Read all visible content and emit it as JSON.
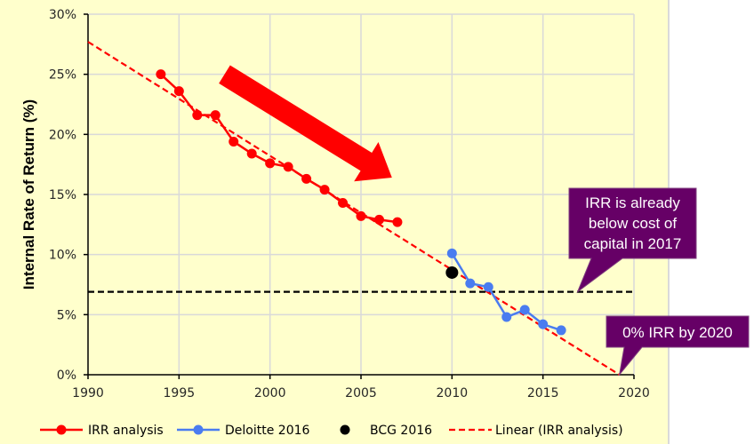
{
  "chart_data": {
    "type": "line",
    "title": "",
    "xlabel": "",
    "ylabel": "Internal Rate of Return (%)",
    "xlim": [
      1990,
      2020
    ],
    "ylim": [
      0,
      30
    ],
    "x_ticks": [
      1990,
      1995,
      2000,
      2005,
      2010,
      2015,
      2020
    ],
    "x_tick_labels": [
      "1990",
      "1995",
      "2000",
      "2005",
      "2010",
      "2015",
      "2020"
    ],
    "y_ticks": [
      0,
      5,
      10,
      15,
      20,
      25,
      30
    ],
    "y_tick_labels": [
      "0%",
      "5%",
      "10%",
      "15%",
      "20%",
      "25%",
      "30%"
    ],
    "grid": true,
    "legend_position": "bottom",
    "background_color": "#ffffcc",
    "series": [
      {
        "name": "IRR analysis",
        "kind": "line-markers",
        "color": "#ff0000",
        "x": [
          1994,
          1995,
          1996,
          1997,
          1998,
          1999,
          2000,
          2001,
          2002,
          2003,
          2004,
          2005,
          2006,
          2007
        ],
        "y": [
          25.0,
          23.6,
          21.6,
          21.6,
          19.4,
          18.4,
          17.6,
          17.3,
          16.3,
          15.4,
          14.3,
          13.2,
          12.9,
          12.7
        ]
      },
      {
        "name": "Deloitte 2016",
        "kind": "line-markers",
        "color": "#4a7cf0",
        "x": [
          2010,
          2011,
          2012,
          2013,
          2014,
          2015,
          2016
        ],
        "y": [
          10.1,
          7.6,
          7.3,
          4.8,
          5.4,
          4.2,
          3.7
        ]
      },
      {
        "name": "BCG 2016",
        "kind": "marker",
        "color": "#000000",
        "x": [
          2010
        ],
        "y": [
          8.5
        ]
      },
      {
        "name": "Linear (IRR analysis)",
        "kind": "trendline",
        "color": "#ff0000",
        "x": [
          1990,
          2019.2
        ],
        "y": [
          27.7,
          0
        ]
      }
    ],
    "reference_lines": [
      {
        "name": "Cost of capital",
        "y": 6.9,
        "x_range": [
          1990,
          2020
        ],
        "color": "#000000",
        "style": "dashed"
      }
    ],
    "annotations": [
      {
        "name": "irr-below-cost-callout",
        "lines": [
          "IRR is already",
          "below cost of",
          "capital in 2017"
        ],
        "points_to": [
          2016.9,
          6.9
        ],
        "color": "#660066"
      },
      {
        "name": "zero-irr-callout",
        "lines": [
          "0% IRR by 2020"
        ],
        "points_to": [
          2019.2,
          0
        ],
        "color": "#660066"
      },
      {
        "name": "downward-trend-arrow",
        "type": "arrow",
        "from": [
          1997.5,
          25.0
        ],
        "to": [
          2006.7,
          16.4
        ],
        "color": "#ff0000"
      }
    ]
  }
}
